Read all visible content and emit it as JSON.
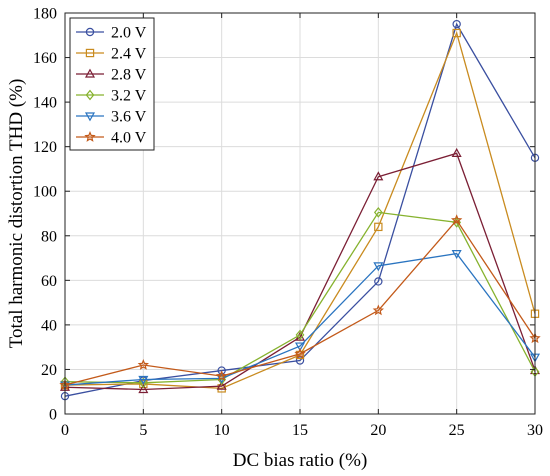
{
  "chart_data": {
    "type": "line",
    "title": "",
    "xlabel": "DC bias ratio (%)",
    "ylabel": "Total harmonic distortion THD (%)",
    "xlim": [
      0,
      30
    ],
    "ylim": [
      0,
      180
    ],
    "x_ticks": [
      0,
      5,
      10,
      15,
      20,
      25,
      30
    ],
    "y_ticks": [
      0,
      20,
      40,
      60,
      80,
      100,
      120,
      140,
      160,
      180
    ],
    "grid": true,
    "legend_position": "top-left",
    "x": [
      0,
      5,
      10,
      15,
      20,
      25,
      30
    ],
    "series": [
      {
        "name": "2.0 V",
        "color": "#3a4fa0",
        "marker": "circle",
        "values": [
          8,
          15,
          19.5,
          24,
          59.5,
          175,
          115
        ]
      },
      {
        "name": "2.4 V",
        "color": "#c98b1f",
        "marker": "square",
        "values": [
          13,
          13.5,
          11.5,
          26.5,
          84,
          171,
          45
        ]
      },
      {
        "name": "2.8 V",
        "color": "#7b1f35",
        "marker": "triangle-up",
        "values": [
          12,
          11,
          12.5,
          34.5,
          106.5,
          117,
          19.5
        ]
      },
      {
        "name": "3.2 V",
        "color": "#86b22e",
        "marker": "diamond",
        "values": [
          14.5,
          14,
          15.5,
          35.5,
          90.5,
          86,
          19
        ]
      },
      {
        "name": "3.6 V",
        "color": "#2a74c0",
        "marker": "triangle-down",
        "values": [
          13,
          15.5,
          16,
          30.5,
          66.5,
          72,
          25.5
        ]
      },
      {
        "name": "4.0 V",
        "color": "#c35a1a",
        "marker": "star",
        "values": [
          13,
          22,
          17,
          27,
          46.5,
          87,
          34
        ]
      }
    ]
  }
}
